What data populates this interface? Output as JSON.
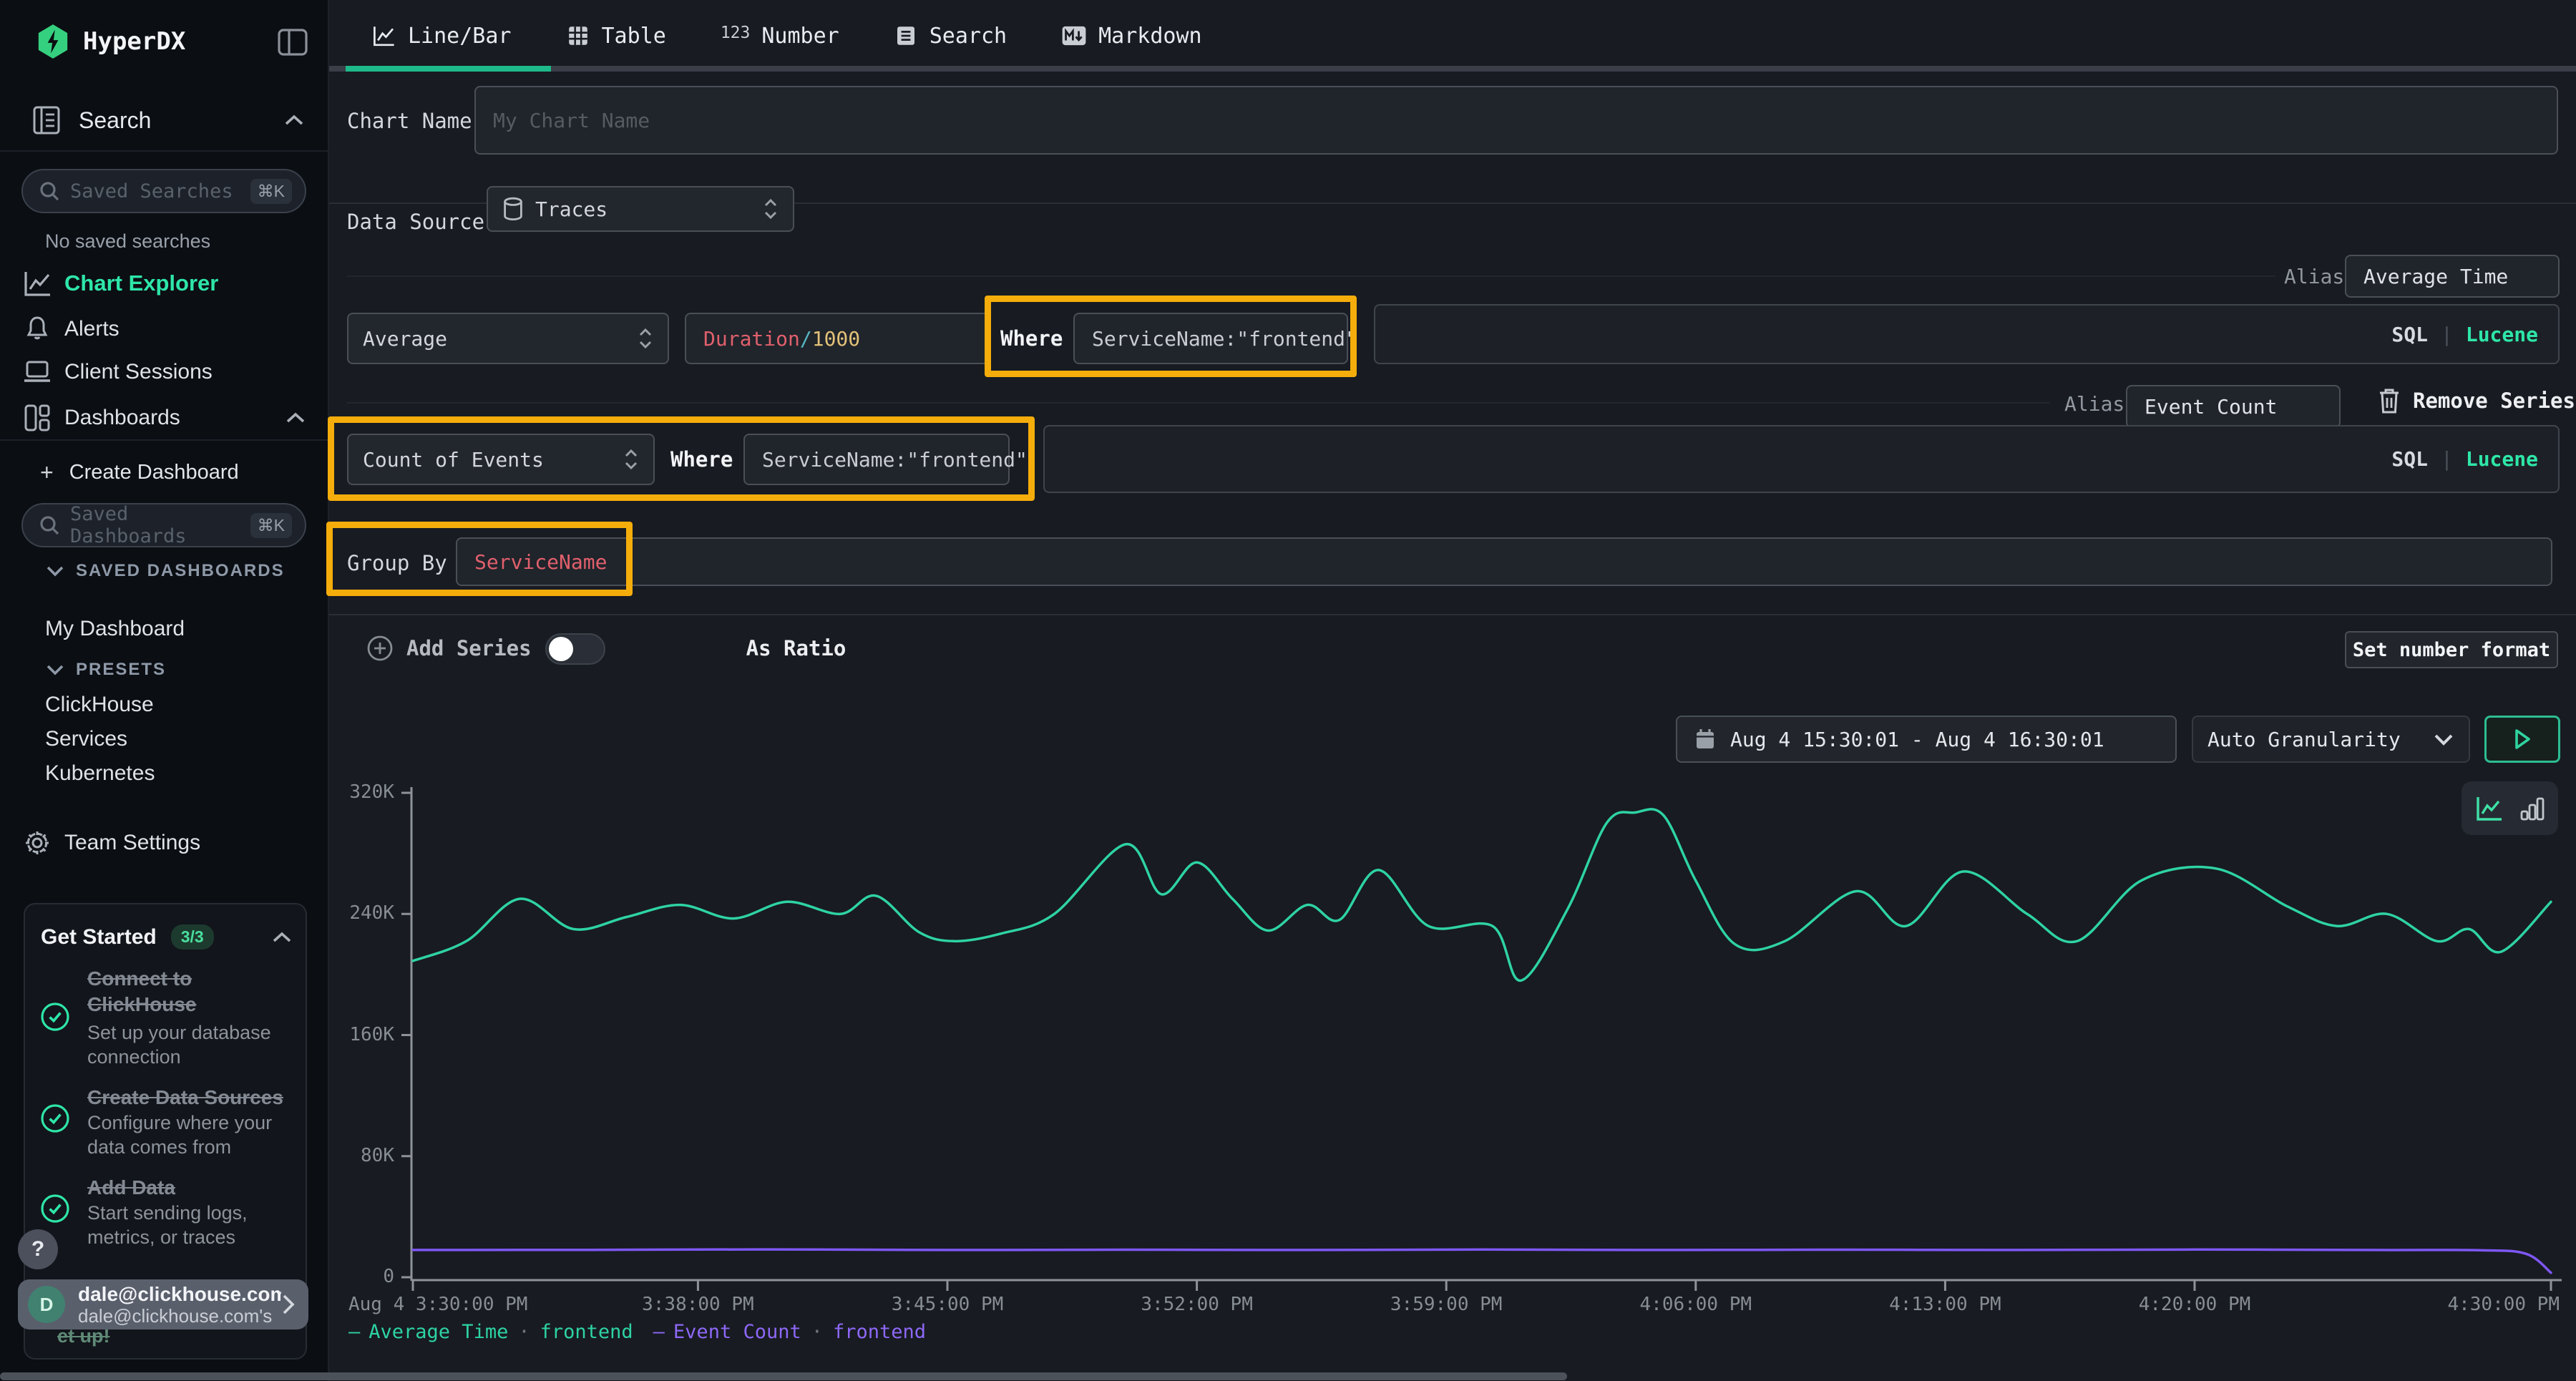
{
  "colors": {
    "accent_green": "#2ee6a8",
    "line_green": "#2ed3a5",
    "line_purple": "#7e57f5",
    "annotation_orange": "#f5ad0b",
    "code_red": "#e0606c",
    "code_yellow": "#e2c178",
    "code_cyan": "#56b6c2"
  },
  "sidebar": {
    "brand": "HyperDX",
    "search": {
      "label": "Search",
      "placeholder": "Saved Searches",
      "shortcut": "⌘K",
      "empty": "No saved searches"
    },
    "nav": [
      {
        "label": "Chart Explorer"
      },
      {
        "label": "Alerts"
      },
      {
        "label": "Client Sessions"
      },
      {
        "label": "Dashboards"
      }
    ],
    "create_dashboard": "Create Dashboard",
    "plus": "+",
    "saved_dashboards": {
      "placeholder": "Saved Dashboards",
      "shortcut": "⌘K",
      "header": "SAVED DASHBOARDS"
    },
    "my_dashboard": "My Dashboard",
    "presets": {
      "header": "PRESETS",
      "items": [
        "ClickHouse",
        "Services",
        "Kubernetes"
      ]
    },
    "team_settings": "Team Settings",
    "get_started": {
      "title": "Get Started",
      "badge": "3/3",
      "items": [
        {
          "title1": "Connect to",
          "title2": "ClickHouse",
          "desc1": "Set up your database",
          "desc2": "connection"
        },
        {
          "title1": "Create Data Sources",
          "title2": "",
          "desc1": "Configure where your",
          "desc2": "data comes from"
        },
        {
          "title1": "Add Data",
          "title2": "",
          "desc1": "Start sending logs,",
          "desc2": "metrics, or traces"
        }
      ]
    },
    "partial_text": "et up!",
    "help": "?",
    "user": {
      "initial": "D",
      "name": "dale@clickhouse.com",
      "sub": "dale@clickhouse.com's"
    }
  },
  "tabs": {
    "items": [
      {
        "label": "Line/Bar",
        "active": true
      },
      {
        "label": "Table",
        "active": false
      },
      {
        "label": "Number",
        "active": false,
        "icon_text": "123"
      },
      {
        "label": "Search",
        "active": false
      },
      {
        "label": "Markdown",
        "active": false
      }
    ]
  },
  "form": {
    "chart_name": {
      "label": "Chart Name",
      "placeholder": "My Chart Name"
    },
    "data_source": {
      "label": "Data Source",
      "value": "Traces"
    },
    "series1": {
      "alias_label": "Alias",
      "alias_value": "Average Time",
      "agg": "Average",
      "field_fn": "Duration",
      "field_slash": "/",
      "field_arg": "1000",
      "where_label": "Where",
      "where_value": "ServiceName:\"frontend\"",
      "sql": "SQL",
      "pipe": "|",
      "lucene": "Lucene"
    },
    "series2": {
      "alias_label": "Alias",
      "alias_value": "Event Count",
      "remove": "Remove Series",
      "agg": "Count of Events",
      "where_label": "Where",
      "where_value": "ServiceName:\"frontend\"",
      "sql": "SQL",
      "pipe": "|",
      "lucene": "Lucene"
    },
    "group_by": {
      "label": "Group By",
      "value": "ServiceName"
    },
    "add_series": "Add Series",
    "as_ratio": "As Ratio",
    "set_number_format": "Set number format"
  },
  "toolbar": {
    "date_range": "Aug 4 15:30:01 - Aug 4 16:30:01",
    "granularity": "Auto Granularity"
  },
  "chart_data": {
    "type": "line",
    "xlabel": "",
    "ylabel": "",
    "ylim": [
      0,
      320000
    ],
    "grid": false,
    "legend_position": "bottom-left",
    "y_ticks": [
      {
        "label": "320K",
        "v": 320
      },
      {
        "label": "240K",
        "v": 240
      },
      {
        "label": "160K",
        "v": 160
      },
      {
        "label": "80K",
        "v": 80
      },
      {
        "label": "0",
        "v": 0
      }
    ],
    "x_ticks": [
      {
        "label": "Aug 4 3:30:00 PM",
        "t": 0
      },
      {
        "label": "3:38:00 PM",
        "t": 8
      },
      {
        "label": "3:45:00 PM",
        "t": 15
      },
      {
        "label": "3:52:00 PM",
        "t": 22
      },
      {
        "label": "3:59:00 PM",
        "t": 29
      },
      {
        "label": "4:06:00 PM",
        "t": 36
      },
      {
        "label": "4:13:00 PM",
        "t": 43
      },
      {
        "label": "4:20:00 PM",
        "t": 50
      },
      {
        "label": "4:30:00 PM",
        "t": 60
      }
    ],
    "series": [
      {
        "name": "Average Time",
        "tag": "frontend",
        "sep": "·",
        "dash": "—",
        "color": "#2ed3a5",
        "unit": "K",
        "points": [
          [
            0,
            209
          ],
          [
            1.5,
            222
          ],
          [
            3,
            250
          ],
          [
            4.5,
            230
          ],
          [
            6,
            238
          ],
          [
            7.5,
            246
          ],
          [
            9,
            237
          ],
          [
            10.5,
            248
          ],
          [
            12,
            240
          ],
          [
            13,
            252
          ],
          [
            14.2,
            228
          ],
          [
            15.2,
            222
          ],
          [
            16.5,
            227
          ],
          [
            18,
            240
          ],
          [
            20,
            286
          ],
          [
            21,
            253
          ],
          [
            22,
            274
          ],
          [
            23,
            250
          ],
          [
            24,
            229
          ],
          [
            25.1,
            246
          ],
          [
            26,
            236
          ],
          [
            27.1,
            269
          ],
          [
            28.5,
            232
          ],
          [
            30.3,
            232
          ],
          [
            31.1,
            196
          ],
          [
            32.4,
            243
          ],
          [
            33.5,
            300
          ],
          [
            34.3,
            307
          ],
          [
            35.1,
            305
          ],
          [
            36,
            262
          ],
          [
            37.1,
            220
          ],
          [
            38.5,
            222
          ],
          [
            40.5,
            255
          ],
          [
            41.9,
            232
          ],
          [
            43.5,
            268
          ],
          [
            45.3,
            240
          ],
          [
            46.7,
            222
          ],
          [
            48.5,
            262
          ],
          [
            50.6,
            270
          ],
          [
            52.6,
            245
          ],
          [
            54,
            232
          ],
          [
            55.4,
            240
          ],
          [
            56.8,
            222
          ],
          [
            57.7,
            230
          ],
          [
            58.6,
            215
          ],
          [
            60,
            248
          ]
        ]
      },
      {
        "name": "Event Count",
        "tag": "frontend",
        "sep": "·",
        "dash": "—",
        "color": "#7e57f5",
        "unit": "K",
        "points": [
          [
            0,
            18
          ],
          [
            5,
            18.1
          ],
          [
            10,
            18.4
          ],
          [
            15,
            18
          ],
          [
            20,
            18.2
          ],
          [
            25,
            18
          ],
          [
            30,
            18.3
          ],
          [
            35,
            18
          ],
          [
            40,
            18.2
          ],
          [
            45,
            18
          ],
          [
            50,
            18.3
          ],
          [
            55,
            18
          ],
          [
            58,
            17.8
          ],
          [
            59.3,
            15.5
          ],
          [
            60,
            3
          ]
        ]
      }
    ]
  }
}
